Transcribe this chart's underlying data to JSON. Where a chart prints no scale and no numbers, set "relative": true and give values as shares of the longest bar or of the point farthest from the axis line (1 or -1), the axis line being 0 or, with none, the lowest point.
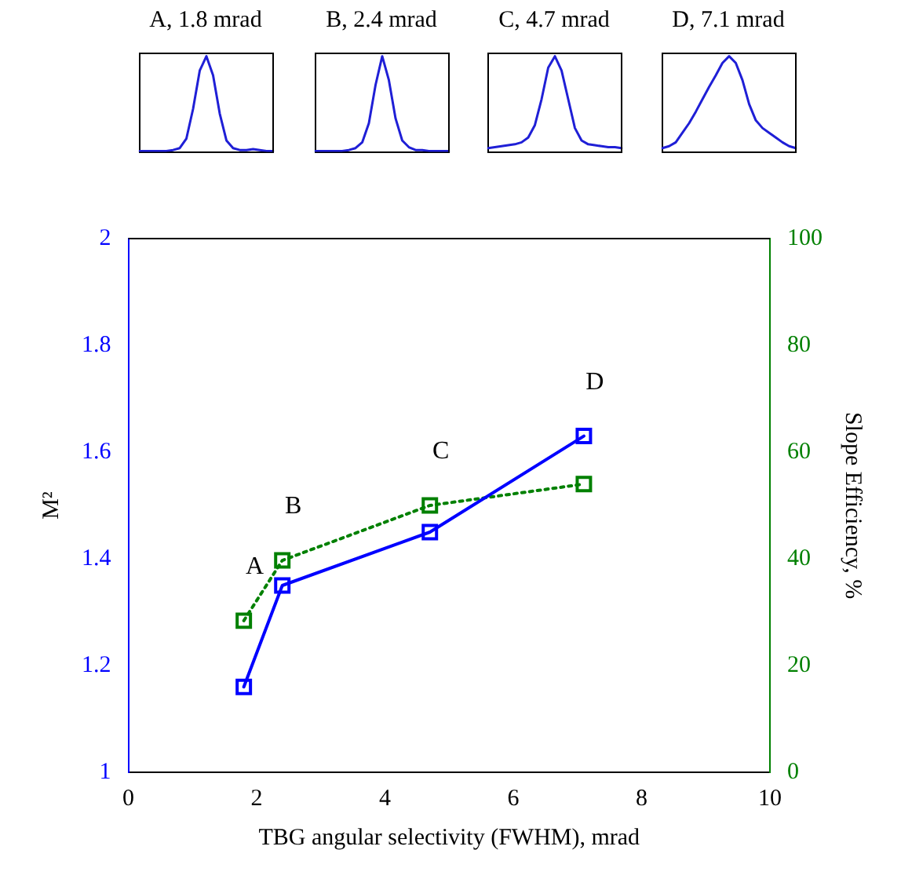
{
  "chart_data": [
    {
      "type": "line",
      "title": "A, 1.8 mrad",
      "relative": true,
      "legend": false,
      "marker": "none",
      "categories": [
        null,
        null,
        null,
        null,
        null,
        null,
        null,
        null,
        null,
        null,
        null,
        null,
        null,
        null,
        null,
        null,
        null,
        null,
        null,
        null,
        null
      ],
      "series": [
        {
          "color": "#1f1fd6",
          "values": [
            0.01,
            0.01,
            0.01,
            0.01,
            0.01,
            0.02,
            0.04,
            0.14,
            0.45,
            0.85,
            1,
            0.8,
            0.4,
            0.12,
            0.04,
            0.02,
            0.02,
            0.03,
            0.02,
            0.01,
            0.01
          ]
        }
      ]
    },
    {
      "type": "line",
      "title": "B, 2.4 mrad",
      "relative": true,
      "legend": false,
      "marker": "none",
      "categories": [
        null,
        null,
        null,
        null,
        null,
        null,
        null,
        null,
        null,
        null,
        null,
        null,
        null,
        null,
        null,
        null,
        null,
        null,
        null,
        null,
        null
      ],
      "series": [
        {
          "color": "#1f1fd6",
          "values": [
            0.01,
            0.01,
            0.01,
            0.01,
            0.01,
            0.02,
            0.04,
            0.1,
            0.3,
            0.7,
            1,
            0.75,
            0.35,
            0.12,
            0.05,
            0.02,
            0.02,
            0.01,
            0.01,
            0.01,
            0.01
          ]
        }
      ]
    },
    {
      "type": "line",
      "title": "C, 4.7 mrad",
      "relative": true,
      "legend": false,
      "marker": "none",
      "categories": [
        null,
        null,
        null,
        null,
        null,
        null,
        null,
        null,
        null,
        null,
        null,
        null,
        null,
        null,
        null,
        null,
        null,
        null,
        null,
        null,
        null
      ],
      "series": [
        {
          "color": "#1f1fd6",
          "values": [
            0.04,
            0.05,
            0.06,
            0.07,
            0.08,
            0.1,
            0.15,
            0.28,
            0.55,
            0.88,
            1,
            0.85,
            0.55,
            0.25,
            0.12,
            0.08,
            0.07,
            0.06,
            0.05,
            0.05,
            0.04
          ]
        }
      ]
    },
    {
      "type": "line",
      "title": "D, 7.1 mrad",
      "relative": true,
      "legend": false,
      "marker": "none",
      "categories": [
        null,
        null,
        null,
        null,
        null,
        null,
        null,
        null,
        null,
        null,
        null,
        null,
        null,
        null,
        null,
        null,
        null,
        null,
        null,
        null,
        null
      ],
      "series": [
        {
          "color": "#1f1fd6",
          "values": [
            0.04,
            0.06,
            0.1,
            0.2,
            0.3,
            0.42,
            0.55,
            0.68,
            0.8,
            0.93,
            1,
            0.93,
            0.75,
            0.5,
            0.33,
            0.25,
            0.2,
            0.15,
            0.1,
            0.06,
            0.04
          ]
        }
      ]
    },
    {
      "type": "line",
      "xlabel": "TBG angular selectivity (FWHM), mrad",
      "ylabel": "M²",
      "y2label": "Slope Efficiency, %",
      "grid": false,
      "legend": false,
      "marker": "square",
      "xlim": [
        0,
        10
      ],
      "xticks": [
        0,
        2,
        4,
        6,
        8,
        10
      ],
      "ylim": [
        1,
        2
      ],
      "yticks": [
        1,
        1.2,
        1.4,
        1.6,
        1.8,
        2
      ],
      "y2lim": [
        0,
        100
      ],
      "y2ticks": [
        0,
        20,
        40,
        60,
        80,
        100
      ],
      "series": [
        {
          "color": "#0000ff",
          "x": [
            1.8,
            2.4,
            4.7,
            7.1
          ],
          "values": [
            1.16,
            1.35,
            1.45,
            1.63
          ],
          "line_style": "solid"
        },
        {
          "color": "#008000",
          "x": [
            1.8,
            2.4,
            4.7,
            7.1
          ],
          "values": [
            28.4,
            39.7,
            50,
            54
          ],
          "axis": "y2",
          "line_style": "dotted"
        }
      ],
      "annotations": [
        "A",
        "B",
        "C",
        "D"
      ]
    }
  ]
}
